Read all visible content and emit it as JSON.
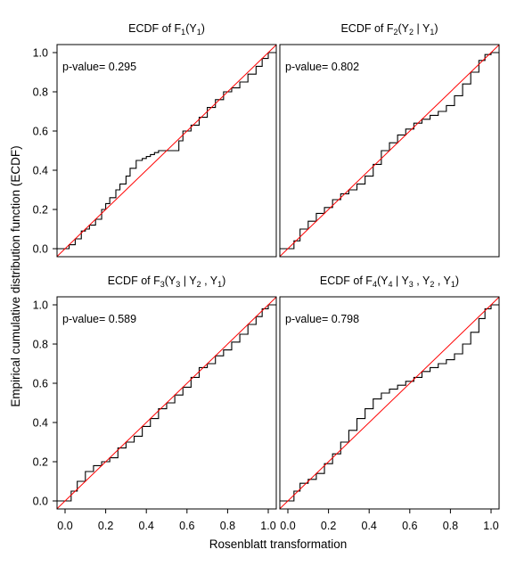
{
  "figure": {
    "xlabel": "Rosenblatt transformation",
    "ylabel": "Empirical cumulative distribution function (ECDF)"
  },
  "chart_data": [
    {
      "type": "line",
      "title": "ECDF of F1(Y1)",
      "title_parts": [
        [
          "ECDF of F",
          ""
        ],
        [
          "1",
          "sub"
        ],
        [
          "(Y",
          ""
        ],
        [
          "1",
          "sub"
        ],
        [
          ")",
          ""
        ]
      ],
      "annotation": "p-value= 0.295",
      "xlim": [
        0,
        1
      ],
      "ylim": [
        0,
        1
      ],
      "xticks": [
        "0.0",
        "0.2",
        "0.4",
        "0.6",
        "0.8",
        "1.0"
      ],
      "yticks": [
        "0.0",
        "0.2",
        "0.4",
        "0.6",
        "0.8",
        "1.0"
      ],
      "show_x_ticks": false,
      "show_y_ticks": true,
      "series": [
        {
          "role": "ecdf",
          "color": "#000000",
          "step": true,
          "x": [
            0,
            0.02,
            0.05,
            0.08,
            0.1,
            0.12,
            0.15,
            0.18,
            0.2,
            0.22,
            0.25,
            0.27,
            0.3,
            0.32,
            0.35,
            0.38,
            0.4,
            0.42,
            0.44,
            0.46,
            0.5,
            0.56,
            0.58,
            0.62,
            0.66,
            0.7,
            0.74,
            0.78,
            0.82,
            0.86,
            0.9,
            0.94,
            0.97,
            1.0
          ],
          "y": [
            0,
            0.02,
            0.05,
            0.09,
            0.1,
            0.12,
            0.15,
            0.2,
            0.23,
            0.26,
            0.3,
            0.33,
            0.37,
            0.41,
            0.45,
            0.46,
            0.47,
            0.48,
            0.49,
            0.5,
            0.5,
            0.55,
            0.6,
            0.63,
            0.67,
            0.72,
            0.76,
            0.8,
            0.82,
            0.85,
            0.89,
            0.93,
            0.97,
            1.0
          ]
        },
        {
          "role": "reference",
          "color": "#ff0000",
          "step": false,
          "x": [
            0,
            1
          ],
          "y": [
            0,
            1
          ]
        }
      ]
    },
    {
      "type": "line",
      "title": "ECDF of F2(Y2 | Y1)",
      "title_parts": [
        [
          "ECDF of  F",
          ""
        ],
        [
          "2",
          "sub"
        ],
        [
          "(Y",
          ""
        ],
        [
          "2",
          "sub"
        ],
        [
          " | Y",
          ""
        ],
        [
          "1",
          "sub"
        ],
        [
          ")",
          ""
        ]
      ],
      "annotation": "p-value= 0.802",
      "xlim": [
        0,
        1
      ],
      "ylim": [
        0,
        1
      ],
      "xticks": [
        "0.0",
        "0.2",
        "0.4",
        "0.6",
        "0.8",
        "1.0"
      ],
      "yticks": [
        "0.0",
        "0.2",
        "0.4",
        "0.6",
        "0.8",
        "1.0"
      ],
      "show_x_ticks": false,
      "show_y_ticks": false,
      "series": [
        {
          "role": "ecdf",
          "color": "#000000",
          "step": true,
          "x": [
            0,
            0.03,
            0.06,
            0.1,
            0.14,
            0.18,
            0.22,
            0.26,
            0.3,
            0.34,
            0.38,
            0.42,
            0.46,
            0.5,
            0.54,
            0.58,
            0.62,
            0.66,
            0.7,
            0.74,
            0.78,
            0.82,
            0.86,
            0.9,
            0.94,
            0.97,
            1.0
          ],
          "y": [
            0,
            0.04,
            0.1,
            0.14,
            0.18,
            0.21,
            0.25,
            0.28,
            0.3,
            0.33,
            0.37,
            0.43,
            0.5,
            0.54,
            0.58,
            0.61,
            0.64,
            0.66,
            0.68,
            0.7,
            0.73,
            0.78,
            0.84,
            0.9,
            0.96,
            0.99,
            1.0
          ]
        },
        {
          "role": "reference",
          "color": "#ff0000",
          "step": false,
          "x": [
            0,
            1
          ],
          "y": [
            0,
            1
          ]
        }
      ]
    },
    {
      "type": "line",
      "title": "ECDF of F3(Y3 | Y2 , Y1)",
      "title_parts": [
        [
          "ECDF of F",
          ""
        ],
        [
          "3",
          "sub"
        ],
        [
          "(Y",
          ""
        ],
        [
          "3",
          "sub"
        ],
        [
          " | Y",
          ""
        ],
        [
          "2",
          "sub"
        ],
        [
          " , Y",
          ""
        ],
        [
          "1",
          "sub"
        ],
        [
          ")",
          ""
        ]
      ],
      "annotation": "p-value= 0.589",
      "xlim": [
        0,
        1
      ],
      "ylim": [
        0,
        1
      ],
      "xticks": [
        "0.0",
        "0.2",
        "0.4",
        "0.6",
        "0.8",
        "1.0"
      ],
      "yticks": [
        "0.0",
        "0.2",
        "0.4",
        "0.6",
        "0.8",
        "1.0"
      ],
      "show_x_ticks": false,
      "show_y_ticks": true,
      "series": [
        {
          "role": "ecdf",
          "color": "#000000",
          "step": true,
          "x": [
            0,
            0.03,
            0.06,
            0.1,
            0.14,
            0.18,
            0.22,
            0.26,
            0.3,
            0.34,
            0.38,
            0.42,
            0.46,
            0.5,
            0.54,
            0.58,
            0.62,
            0.66,
            0.7,
            0.74,
            0.78,
            0.82,
            0.86,
            0.9,
            0.94,
            0.97,
            1.0
          ],
          "y": [
            0,
            0.05,
            0.1,
            0.15,
            0.18,
            0.2,
            0.22,
            0.27,
            0.3,
            0.33,
            0.38,
            0.42,
            0.47,
            0.5,
            0.54,
            0.58,
            0.63,
            0.68,
            0.7,
            0.74,
            0.77,
            0.81,
            0.85,
            0.9,
            0.94,
            0.98,
            1.0
          ]
        },
        {
          "role": "reference",
          "color": "#ff0000",
          "step": false,
          "x": [
            0,
            1
          ],
          "y": [
            0,
            1
          ]
        }
      ]
    },
    {
      "type": "line",
      "title": "ECDF of F4(Y4 | Y3 , Y2 , Y1)",
      "title_parts": [
        [
          "ECDF of F",
          ""
        ],
        [
          "4",
          "sub"
        ],
        [
          "(Y",
          ""
        ],
        [
          "4",
          "sub"
        ],
        [
          " | Y",
          ""
        ],
        [
          "3",
          "sub"
        ],
        [
          " , Y",
          ""
        ],
        [
          "2",
          "sub"
        ],
        [
          " , Y",
          ""
        ],
        [
          "1",
          "sub"
        ],
        [
          ")",
          ""
        ]
      ],
      "annotation": "p-value= 0.798",
      "xlim": [
        0,
        1
      ],
      "ylim": [
        0,
        1
      ],
      "xticks": [
        "0.0",
        "0.2",
        "0.4",
        "0.6",
        "0.8",
        "1.0"
      ],
      "yticks": [
        "0.0",
        "0.2",
        "0.4",
        "0.6",
        "0.8",
        "1.0"
      ],
      "show_x_ticks": true,
      "show_y_ticks": false,
      "series": [
        {
          "role": "ecdf",
          "color": "#000000",
          "step": true,
          "x": [
            0,
            0.03,
            0.06,
            0.1,
            0.14,
            0.18,
            0.22,
            0.26,
            0.3,
            0.34,
            0.38,
            0.42,
            0.46,
            0.5,
            0.54,
            0.58,
            0.62,
            0.66,
            0.7,
            0.74,
            0.78,
            0.82,
            0.86,
            0.9,
            0.94,
            0.97,
            1.0
          ],
          "y": [
            0,
            0.05,
            0.09,
            0.11,
            0.14,
            0.19,
            0.24,
            0.3,
            0.36,
            0.42,
            0.47,
            0.52,
            0.55,
            0.57,
            0.59,
            0.61,
            0.63,
            0.66,
            0.68,
            0.7,
            0.72,
            0.75,
            0.8,
            0.86,
            0.93,
            0.98,
            1.0
          ]
        },
        {
          "role": "reference",
          "color": "#ff0000",
          "step": false,
          "x": [
            0,
            1
          ],
          "y": [
            0,
            1
          ]
        }
      ]
    }
  ]
}
